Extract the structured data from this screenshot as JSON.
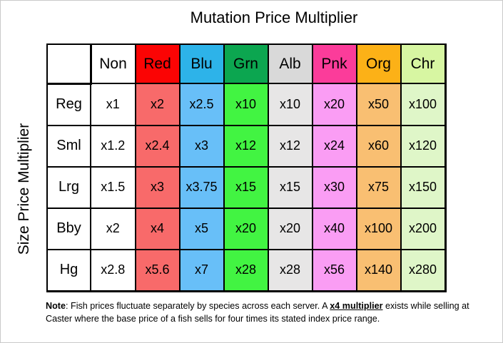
{
  "title": "Mutation Price Multiplier",
  "side_label": "Size Price Multiplier",
  "chart_data": {
    "type": "table",
    "title": "Mutation Price Multiplier",
    "row_axis_label": "Size Price Multiplier",
    "columns": [
      "Non",
      "Red",
      "Blu",
      "Grn",
      "Alb",
      "Pnk",
      "Org",
      "Chr"
    ],
    "rows": [
      "Reg",
      "Sml",
      "Lrg",
      "Bby",
      "Hg"
    ],
    "values": [
      [
        "x1",
        "x2",
        "x2.5",
        "x10",
        "x10",
        "x20",
        "x50",
        "x100"
      ],
      [
        "x1.2",
        "x2.4",
        "x3",
        "x12",
        "x12",
        "x24",
        "x60",
        "x120"
      ],
      [
        "x1.5",
        "x3",
        "x3.75",
        "x15",
        "x15",
        "x30",
        "x75",
        "x150"
      ],
      [
        "x2",
        "x4",
        "x5",
        "x20",
        "x20",
        "x40",
        "x100",
        "x200"
      ],
      [
        "x2.8",
        "x5.6",
        "x7",
        "x28",
        "x28",
        "x56",
        "x140",
        "x280"
      ]
    ],
    "column_header_colors": [
      "#ffffff",
      "#fb0404",
      "#2db3e9",
      "#0ca650",
      "#d9d9d9",
      "#fb3c9a",
      "#fcb117",
      "#d7f6a2"
    ],
    "column_body_colors": [
      "#ffffff",
      "#f86a6a",
      "#68bff8",
      "#42f442",
      "#e7e6e6",
      "#fa9df4",
      "#f9bf72",
      "#dff6c8"
    ]
  },
  "note": {
    "label": "Note",
    "part1": ": Fish prices fluctuate separately by species across each server. A ",
    "emphasis": "x4 multiplier",
    "part2": " exists while selling at Caster where the base price of a fish sells for four times its stated index price range."
  }
}
